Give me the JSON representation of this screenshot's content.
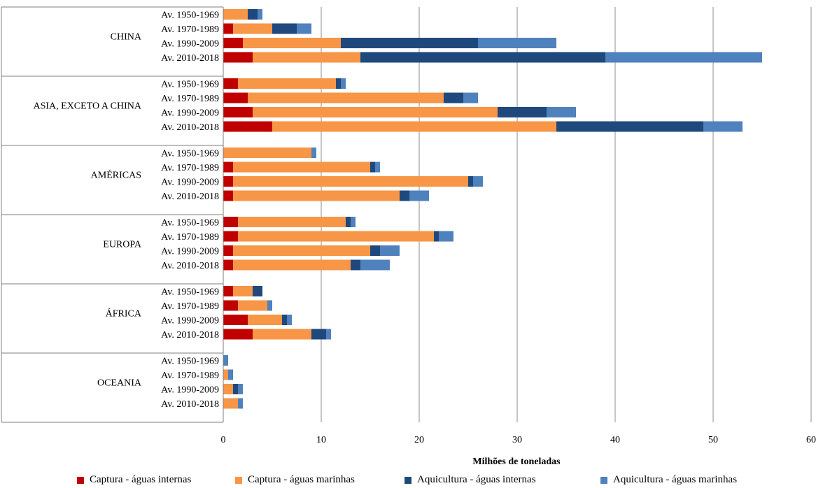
{
  "chart_data": {
    "type": "bar",
    "orientation": "horizontal",
    "stacked": true,
    "xlabel": "Milhões de toneladas",
    "xlim": [
      0,
      60
    ],
    "xticks": [
      0,
      10,
      20,
      30,
      40,
      50,
      60
    ],
    "grid": "vertical",
    "legend_position": "bottom",
    "groups": [
      "CHINA",
      "ASIA, EXCETO A CHINA",
      "AMÉRICAS",
      "EUROPA",
      "ÁFRICA",
      "OCEANIA"
    ],
    "periods": [
      "Av. 1950-1969",
      "Av. 1970-1989",
      "Av. 1990-2009",
      "Av. 2010-2018"
    ],
    "series": [
      {
        "name": "Captura - águas internas",
        "color": "#c00000",
        "values": [
          [
            0,
            1,
            2,
            3
          ],
          [
            1.5,
            2.5,
            3,
            5
          ],
          [
            0,
            1,
            1,
            1
          ],
          [
            1.5,
            1.5,
            1,
            1
          ],
          [
            1,
            1.5,
            2.5,
            3
          ],
          [
            0,
            0,
            0,
            0
          ]
        ]
      },
      {
        "name": "Captura - águas marinhas",
        "color": "#f79646",
        "values": [
          [
            2.5,
            4,
            10,
            11
          ],
          [
            10,
            20,
            25,
            29
          ],
          [
            9,
            14,
            24,
            17
          ],
          [
            11,
            20,
            14,
            12
          ],
          [
            2,
            3,
            3.5,
            6
          ],
          [
            0,
            0.5,
            1,
            1.5
          ]
        ]
      },
      {
        "name": "Aquicultura - águas internas",
        "color": "#1f497d",
        "values": [
          [
            1,
            2.5,
            14,
            25
          ],
          [
            0.5,
            2,
            5,
            15
          ],
          [
            0,
            0.5,
            0.5,
            1
          ],
          [
            0.5,
            0.5,
            1,
            1
          ],
          [
            1,
            0,
            0.5,
            1.5
          ],
          [
            0,
            0,
            0.5,
            0
          ]
        ]
      },
      {
        "name": "Aquicultura - águas marinhas",
        "color": "#4f81bd",
        "values": [
          [
            0.5,
            1.5,
            8,
            16
          ],
          [
            0.5,
            1.5,
            3,
            4
          ],
          [
            0.5,
            0.5,
            1,
            2
          ],
          [
            0.5,
            1.5,
            2,
            3
          ],
          [
            0,
            0.5,
            0.5,
            0.5
          ],
          [
            0.5,
            0.5,
            0.5,
            0.5
          ]
        ]
      }
    ]
  }
}
